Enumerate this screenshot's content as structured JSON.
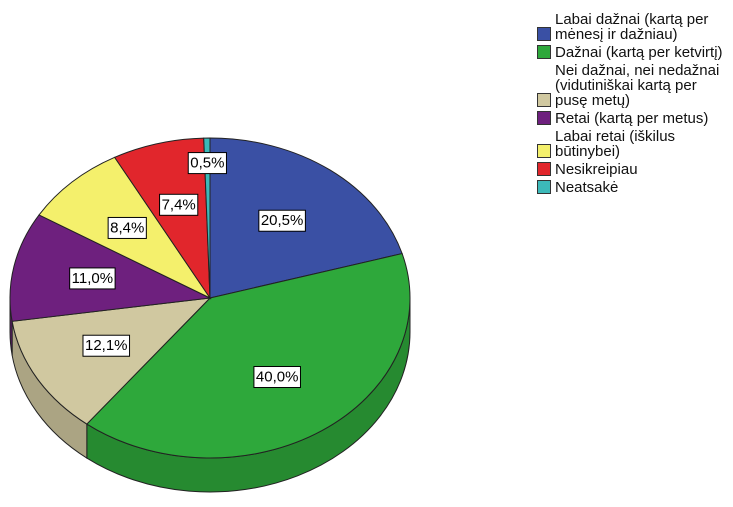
{
  "chart_data": {
    "type": "pie",
    "categories": [
      "Labai dažnai (kartą per mėnesį ir dažniau)",
      "Dažnai (kartą per ketvirtį)",
      "Nei dažnai, nei nedažnai (vidutiniškai kartą per pusę metų)",
      "Retai (kartą per metus)",
      "Labai retai (iškilus būtinybei)",
      "Nesikreipiau",
      "Neatsakė"
    ],
    "values": [
      20.5,
      40.0,
      12.1,
      11.0,
      8.4,
      7.4,
      0.5
    ],
    "value_labels": [
      "20,5%",
      "40,0%",
      "12,1%",
      "11,0%",
      "8,4%",
      "7,4%",
      "0,5%"
    ],
    "colors": [
      "#3a50a4",
      "#2ea83b",
      "#d0c8a0",
      "#6e207e",
      "#f4f06c",
      "#e1262c",
      "#3cb9b9"
    ],
    "legend": "right"
  }
}
